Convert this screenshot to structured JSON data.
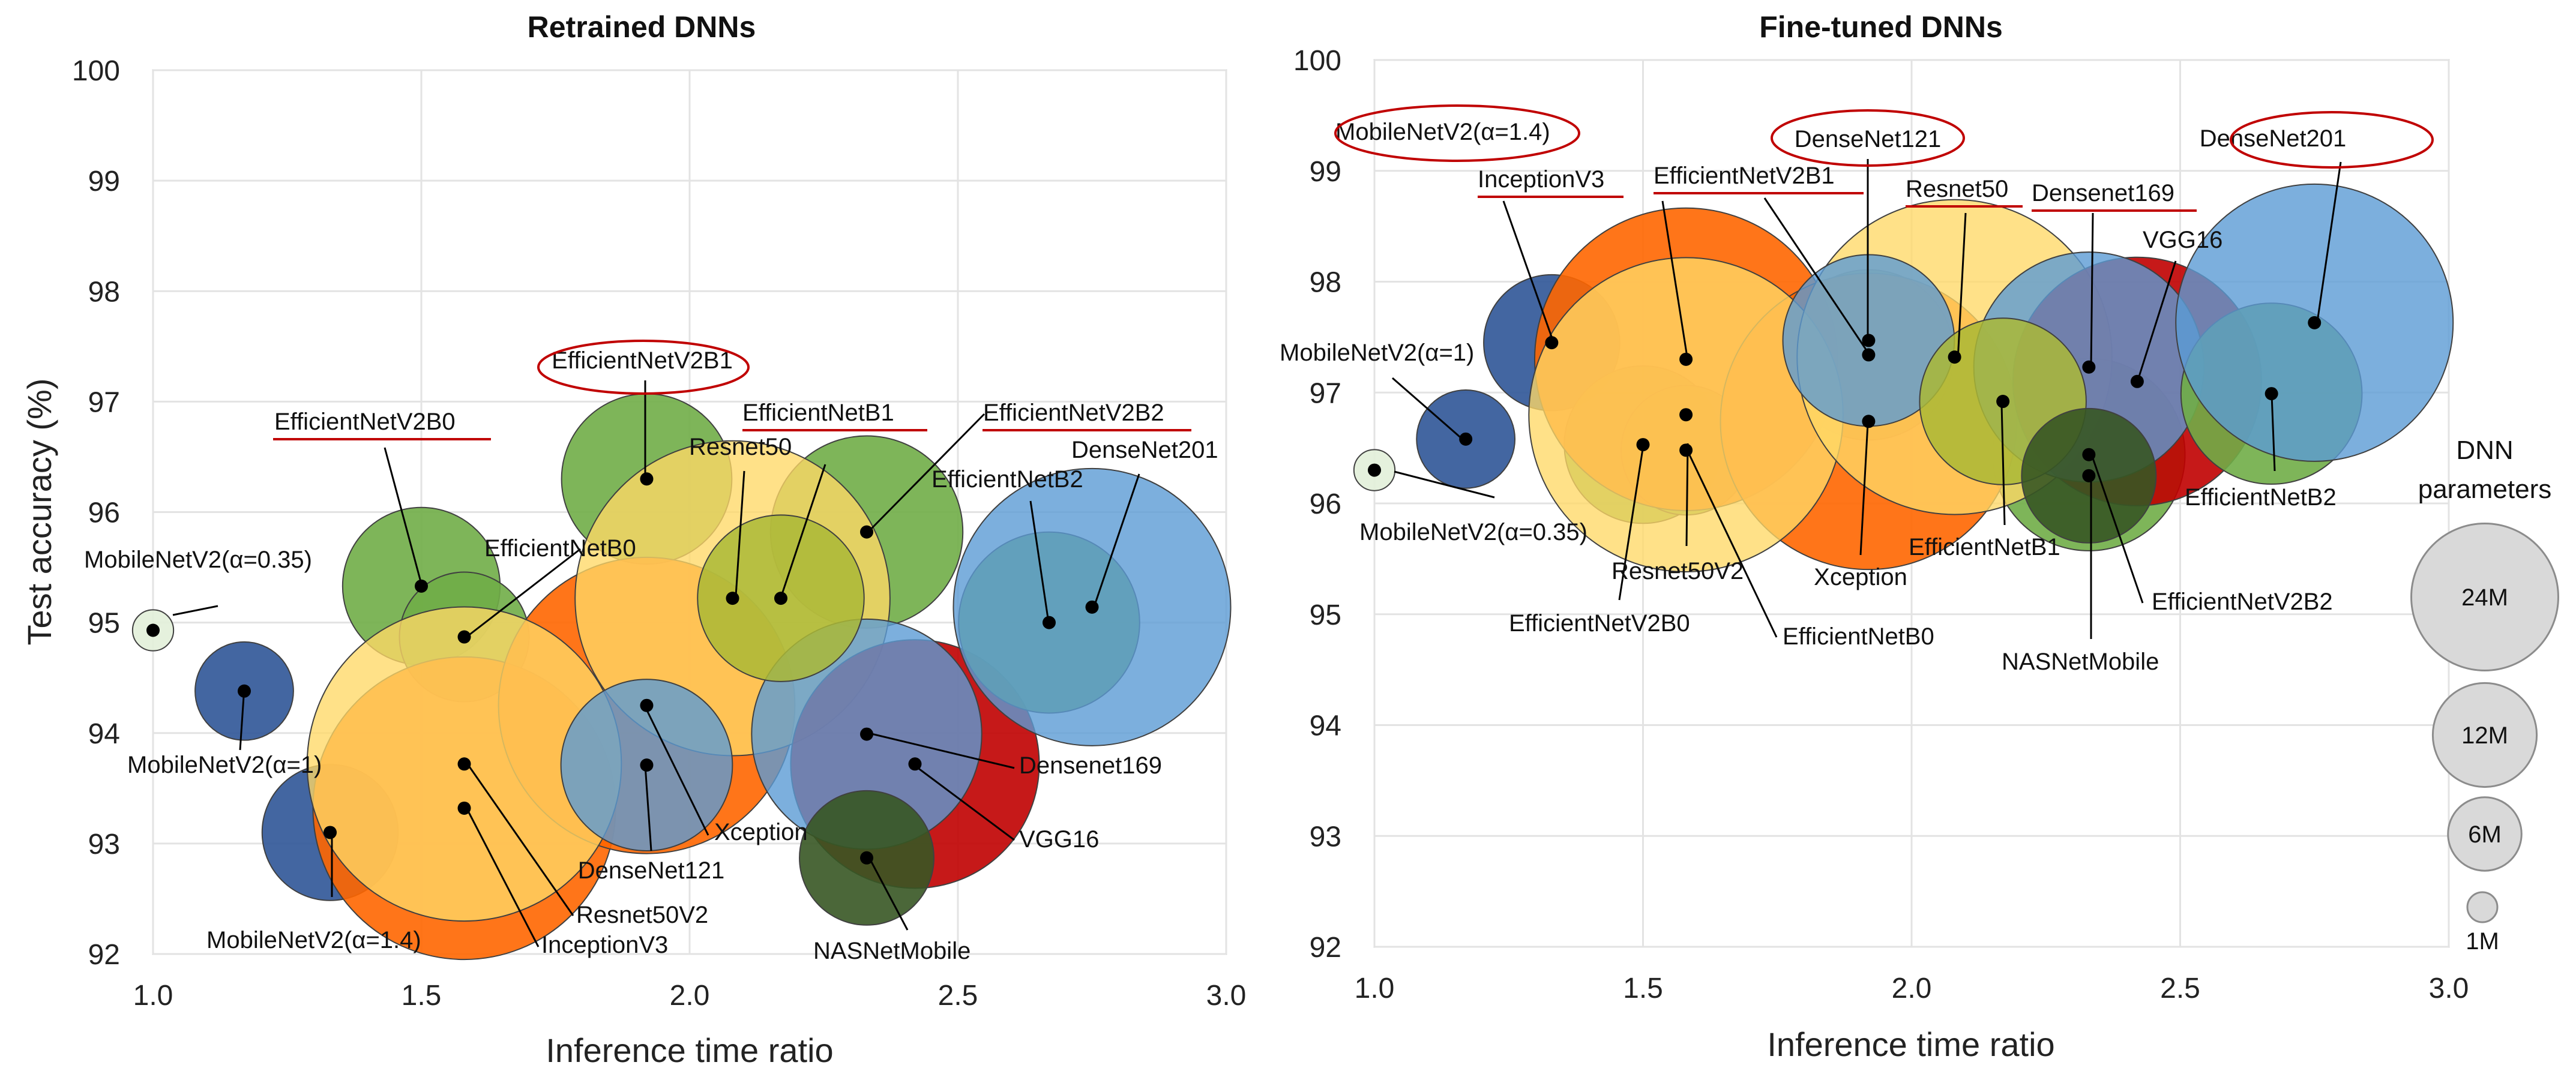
{
  "colors": {
    "MobileNetV2(α=0.35)": "#e2efd9",
    "MobileNetV2(α=1)": "#2f5597",
    "MobileNetV2(α=1.4)": "#2f5597",
    "EfficientNetV2B0": "#70ad47",
    "EfficientNetB0": "#70ad47",
    "EfficientNetV2B1": "#70ad47",
    "EfficientNetB1": "#aab936",
    "EfficientNetV2B2": "#70ad47",
    "EfficientNetB2": "#70ad47",
    "Resnet50": "#ffd966",
    "Resnet50V2": "#ffd966",
    "InceptionV3": "#ff6600",
    "Xception": "#ff6600",
    "DenseNet121": "#5b9bd5",
    "DenseNet201": "#5b9bd5",
    "Densenet169": "#5b9bd5",
    "VGG16": "#c00000",
    "NASNetMobile": "#375623",
    "overlap_Densenet169_VGG16": "#7f6fa8",
    "overlap_orange_yellow": "#ffa500",
    "annotation_red": "#c00000",
    "legend_fill": "#d9d9d9",
    "legend_stroke": "#8c8c8c"
  },
  "chart_data": [
    {
      "type": "scatter",
      "title": "Retrained DNNs",
      "xlabel": "Inference time ratio",
      "ylabel": "Test accuracy (%)",
      "xlim": [
        1.0,
        3.0
      ],
      "ylim": [
        92,
        100
      ],
      "xticks": [
        "1.0",
        "1.5",
        "2.0",
        "2.5",
        "3.0"
      ],
      "yticks": [
        "92",
        "93",
        "94",
        "95",
        "96",
        "97",
        "98",
        "99",
        "100"
      ],
      "series": [
        {
          "name": "MobileNetV2(α=0.35)",
          "x": 1.0,
          "y": 94.93,
          "params_m": 0.4,
          "highlight": "none"
        },
        {
          "name": "MobileNetV2(α=1)",
          "x": 1.17,
          "y": 94.38,
          "params_m": 2.3,
          "highlight": "none"
        },
        {
          "name": "MobileNetV2(α=1.4)",
          "x": 1.33,
          "y": 93.1,
          "params_m": 4.4,
          "highlight": "none"
        },
        {
          "name": "EfficientNetV2B0",
          "x": 1.5,
          "y": 95.33,
          "params_m": 5.9,
          "highlight": "underline"
        },
        {
          "name": "EfficientNetB0",
          "x": 1.58,
          "y": 94.87,
          "params_m": 4.0,
          "highlight": "none"
        },
        {
          "name": "Resnet50V2",
          "x": 1.58,
          "y": 93.72,
          "params_m": 23.5,
          "highlight": "none"
        },
        {
          "name": "InceptionV3",
          "x": 1.58,
          "y": 93.32,
          "params_m": 21.8,
          "highlight": "none"
        },
        {
          "name": "EfficientNetV2B1",
          "x": 1.92,
          "y": 96.3,
          "params_m": 6.9,
          "highlight": "circle"
        },
        {
          "name": "DenseNet121",
          "x": 1.92,
          "y": 93.71,
          "params_m": 7.0,
          "highlight": "none"
        },
        {
          "name": "Xception",
          "x": 1.92,
          "y": 94.25,
          "params_m": 20.9,
          "highlight": "none"
        },
        {
          "name": "Resnet50",
          "x": 2.08,
          "y": 95.22,
          "params_m": 23.6,
          "highlight": "none"
        },
        {
          "name": "EfficientNetB1",
          "x": 2.17,
          "y": 95.22,
          "params_m": 6.6,
          "highlight": "underline"
        },
        {
          "name": "EfficientNetV2B2",
          "x": 2.33,
          "y": 95.82,
          "params_m": 8.8,
          "highlight": "underline"
        },
        {
          "name": "Densenet169",
          "x": 2.33,
          "y": 93.99,
          "params_m": 12.6,
          "highlight": "none"
        },
        {
          "name": "NASNetMobile",
          "x": 2.33,
          "y": 92.87,
          "params_m": 4.3,
          "highlight": "none"
        },
        {
          "name": "VGG16",
          "x": 2.42,
          "y": 93.72,
          "params_m": 14.7,
          "highlight": "none"
        },
        {
          "name": "EfficientNetB2",
          "x": 2.67,
          "y": 95.0,
          "params_m": 7.8,
          "highlight": "none"
        },
        {
          "name": "DenseNet201",
          "x": 2.75,
          "y": 95.14,
          "params_m": 18.3,
          "highlight": "none"
        }
      ]
    },
    {
      "type": "scatter",
      "title": "Fine-tuned DNNs",
      "xlabel": "Inference time ratio",
      "ylabel": "",
      "xlim": [
        1.0,
        3.0
      ],
      "ylim": [
        92,
        100
      ],
      "xticks": [
        "1.0",
        "1.5",
        "2.0",
        "2.5",
        "3.0"
      ],
      "yticks": [
        "92",
        "93",
        "94",
        "95",
        "96",
        "97",
        "98",
        "99",
        "100"
      ],
      "series": [
        {
          "name": "MobileNetV2(α=0.35)",
          "x": 1.0,
          "y": 96.3,
          "params_m": 0.4,
          "highlight": "none"
        },
        {
          "name": "MobileNetV2(α=1)",
          "x": 1.17,
          "y": 96.58,
          "params_m": 2.3,
          "highlight": "none"
        },
        {
          "name": "MobileNetV2(α=1.4)",
          "x": 1.33,
          "y": 97.45,
          "params_m": 4.4,
          "highlight": "circle"
        },
        {
          "name": "EfficientNetV2B0",
          "x": 1.5,
          "y": 96.53,
          "params_m": 5.9,
          "highlight": "none"
        },
        {
          "name": "InceptionV3",
          "x": 1.58,
          "y": 97.3,
          "params_m": 21.8,
          "highlight": "underline"
        },
        {
          "name": "Resnet50V2",
          "x": 1.58,
          "y": 96.8,
          "params_m": 23.5,
          "highlight": "none"
        },
        {
          "name": "EfficientNetB0",
          "x": 1.58,
          "y": 96.48,
          "params_m": 4.0,
          "highlight": "none"
        },
        {
          "name": "EfficientNetV2B1",
          "x": 1.92,
          "y": 97.34,
          "params_m": 6.9,
          "highlight": "underline"
        },
        {
          "name": "DenseNet121",
          "x": 1.92,
          "y": 97.47,
          "params_m": 7.0,
          "highlight": "circle"
        },
        {
          "name": "Xception",
          "x": 1.92,
          "y": 96.74,
          "params_m": 20.9,
          "highlight": "none"
        },
        {
          "name": "Resnet50",
          "x": 2.08,
          "y": 97.32,
          "params_m": 23.6,
          "highlight": "underline"
        },
        {
          "name": "EfficientNetB1",
          "x": 2.17,
          "y": 96.92,
          "params_m": 6.6,
          "highlight": "none"
        },
        {
          "name": "Densenet169",
          "x": 2.33,
          "y": 97.23,
          "params_m": 12.6,
          "highlight": "underline"
        },
        {
          "name": "EfficientNetV2B2",
          "x": 2.33,
          "y": 96.44,
          "params_m": 8.8,
          "highlight": "none"
        },
        {
          "name": "NASNetMobile",
          "x": 2.33,
          "y": 96.25,
          "params_m": 4.3,
          "highlight": "none"
        },
        {
          "name": "VGG16",
          "x": 2.42,
          "y": 97.1,
          "params_m": 14.7,
          "highlight": "none"
        },
        {
          "name": "EfficientNetB2",
          "x": 2.67,
          "y": 96.99,
          "params_m": 7.8,
          "highlight": "none"
        },
        {
          "name": "DenseNet201",
          "x": 2.75,
          "y": 97.63,
          "params_m": 18.3,
          "highlight": "circle"
        }
      ]
    }
  ],
  "legend": {
    "title_line1": "DNN",
    "title_line2": "parameters",
    "items": [
      {
        "label": "24M",
        "params_m": 24
      },
      {
        "label": "12M",
        "params_m": 12
      },
      {
        "label": "6M",
        "params_m": 6
      },
      {
        "label": "1M",
        "params_m": 1
      }
    ]
  }
}
